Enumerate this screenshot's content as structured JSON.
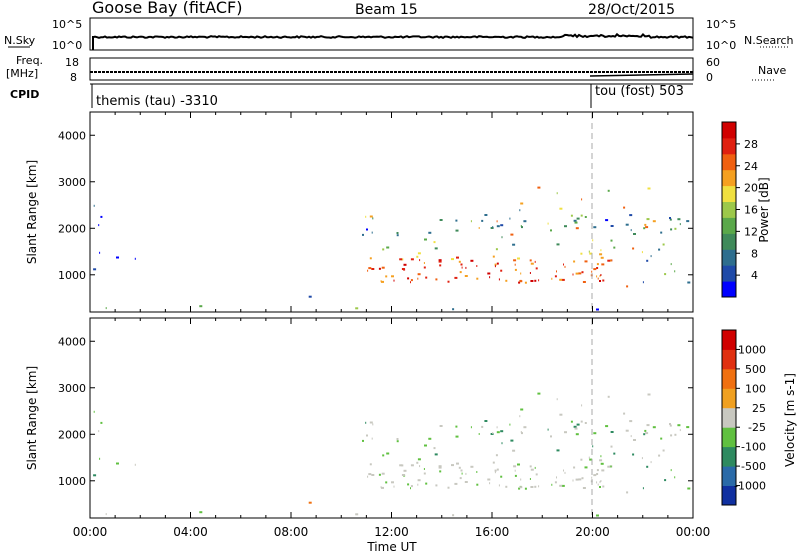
{
  "header": {
    "station": "Goose Bay (fitACF)",
    "beam": "Beam 15",
    "date": "28/Oct/2015"
  },
  "top_panels": {
    "nsky_label": "N.Sky",
    "nsky_ticks": [
      "10^5",
      "10^0"
    ],
    "nsearch_label": "N.Search",
    "freq_label_1": "Freq.",
    "freq_label_2": "[MHz]",
    "freq_ticks": [
      "18",
      "8"
    ],
    "nave_ticks": [
      "60",
      "0"
    ],
    "nave_label": "Nave",
    "cpid_label": "CPID",
    "cpid_left": "themis (tau) -3310",
    "cpid_right": "tou (fost) 503"
  },
  "chart_data": [
    {
      "type": "heatmap",
      "name": "power",
      "ylabel": "Slant Range [km]",
      "yticks": [
        "4000",
        "3000",
        "2000",
        "1000"
      ],
      "ylim": [
        200,
        4500
      ],
      "xlim_hours": [
        0,
        24
      ],
      "colorbar": {
        "label": "Power [dB]",
        "ticks": [
          "28",
          "24",
          "20",
          "16",
          "12",
          "8",
          "4"
        ],
        "range": [
          0,
          32
        ],
        "colors": [
          "#0000ff",
          "#1f4aa8",
          "#2e6e8e",
          "#3f8a5a",
          "#5aa84a",
          "#9cc84a",
          "#f0e040",
          "#f5a020",
          "#f06010",
          "#e02010",
          "#d00000"
        ]
      }
    },
    {
      "type": "heatmap",
      "name": "velocity",
      "ylabel": "Slant Range [km]",
      "yticks": [
        "4000",
        "3000",
        "2000",
        "1000"
      ],
      "ylim": [
        200,
        4500
      ],
      "xlim_hours": [
        0,
        24
      ],
      "colorbar": {
        "label": "Velocity [m s-1]",
        "ticks": [
          "1000",
          "500",
          "100",
          "25",
          "-25",
          "-100",
          "-500",
          "-1000"
        ],
        "colors": [
          "#1030a0",
          "#2a6aa8",
          "#2e8a60",
          "#60c040",
          "#c8c8c0",
          "#f0a020",
          "#f07010",
          "#e03010",
          "#d00000"
        ]
      }
    }
  ],
  "xaxis": {
    "ticks": [
      "00:00",
      "04:00",
      "08:00",
      "12:00",
      "16:00",
      "20:00",
      "00:00"
    ],
    "label": "Time UT"
  }
}
